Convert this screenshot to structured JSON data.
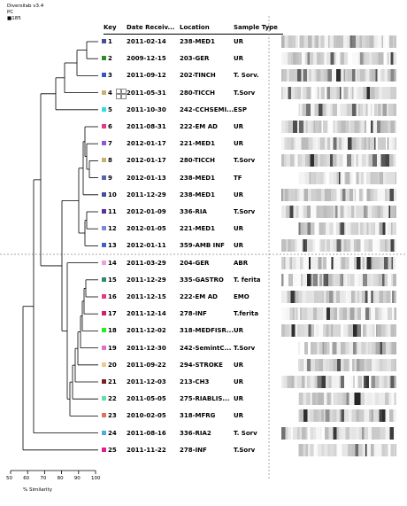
{
  "software": {
    "line1": "Diversilab v3.4",
    "line2": "PC",
    "line3": "■185"
  },
  "headers": {
    "key": "Key",
    "date": "Date Receiv...",
    "location": "Location",
    "type": "Sample Type"
  },
  "axis": {
    "ticks": [
      "50",
      "60",
      "70",
      "80",
      "90",
      "100"
    ],
    "label": "% Similarity"
  },
  "samples": [
    {
      "key": "1",
      "color": "#4b4b9b",
      "date": "2011-02-14",
      "location": "238-MED1",
      "type": "UR"
    },
    {
      "key": "2",
      "color": "#2e8b2e",
      "date": "2009-12-15",
      "location": "203-GER",
      "type": "UR"
    },
    {
      "key": "3",
      "color": "#3355cc",
      "date": "2011-09-12",
      "location": "202-TINCH",
      "type": "T. Sorv."
    },
    {
      "key": "4",
      "color": "#c8b070",
      "date": "2011-05-31",
      "location": "280-TICCH",
      "type": "T.Sorv"
    },
    {
      "key": "5",
      "color": "#33dddd",
      "date": "2011-10-30",
      "location": "242-CCHSEMI...",
      "type": "ESP"
    },
    {
      "key": "6",
      "color": "#e03a8a",
      "date": "2011-08-31",
      "location": "222-EM AD",
      "type": "UR"
    },
    {
      "key": "7",
      "color": "#8a5ad8",
      "date": "2012-01-17",
      "location": "221-MED1",
      "type": "UR"
    },
    {
      "key": "8",
      "color": "#c8b070",
      "date": "2012-01-17",
      "location": "280-TICCH",
      "type": "T.Sorv"
    },
    {
      "key": "9",
      "color": "#5566aa",
      "date": "2012-01-13",
      "location": "238-MED1",
      "type": "TF"
    },
    {
      "key": "10",
      "color": "#4b4b9b",
      "date": "2011-12-29",
      "location": "238-MED1",
      "type": "UR"
    },
    {
      "key": "11",
      "color": "#55339a",
      "date": "2012-01-09",
      "location": "336-RIA",
      "type": "T.Sorv"
    },
    {
      "key": "12",
      "color": "#7a8ad8",
      "date": "2012-01-05",
      "location": "221-MED1",
      "type": "UR"
    },
    {
      "key": "13",
      "color": "#4060c8",
      "date": "2012-01-11",
      "location": "359-AMB INF",
      "type": "UR"
    },
    {
      "key": "14",
      "color": "#f0a0d8",
      "date": "2011-03-29",
      "location": "204-GER",
      "type": "ABR"
    },
    {
      "key": "15",
      "color": "#2e8b6e",
      "date": "2011-12-29",
      "location": "335-GASTRO",
      "type": "T. ferita"
    },
    {
      "key": "16",
      "color": "#e03a8a",
      "date": "2011-12-15",
      "location": "222-EM AD",
      "type": "EMO"
    },
    {
      "key": "17",
      "color": "#d02070",
      "date": "2011-12-14",
      "location": "278-INF",
      "type": "T.ferita"
    },
    {
      "key": "18",
      "color": "#22ee22",
      "date": "2011-12-02",
      "location": "318-MEDFISR...",
      "type": "UR"
    },
    {
      "key": "19",
      "color": "#e070d0",
      "date": "2011-12-30",
      "location": "242-SemintC...",
      "type": "T.Sorv"
    },
    {
      "key": "20",
      "color": "#f0c890",
      "date": "2011-09-22",
      "location": "294-STROKE",
      "type": "UR"
    },
    {
      "key": "21",
      "color": "#7a2020",
      "date": "2011-12-03",
      "location": "213-CH3",
      "type": "UR"
    },
    {
      "key": "22",
      "color": "#66ddaa",
      "date": "2011-05-05",
      "location": "275-RIABLIS...",
      "type": "UR"
    },
    {
      "key": "23",
      "color": "#e07060",
      "date": "2010-02-05",
      "location": "318-MFRG",
      "type": "UR"
    },
    {
      "key": "24",
      "color": "#55aadd",
      "date": "2011-08-16",
      "location": "336-RIA2",
      "type": "T. Sorv"
    },
    {
      "key": "25",
      "color": "#e02088",
      "date": "2011-11-22",
      "location": "278-INF",
      "type": "T.Sorv"
    }
  ]
}
